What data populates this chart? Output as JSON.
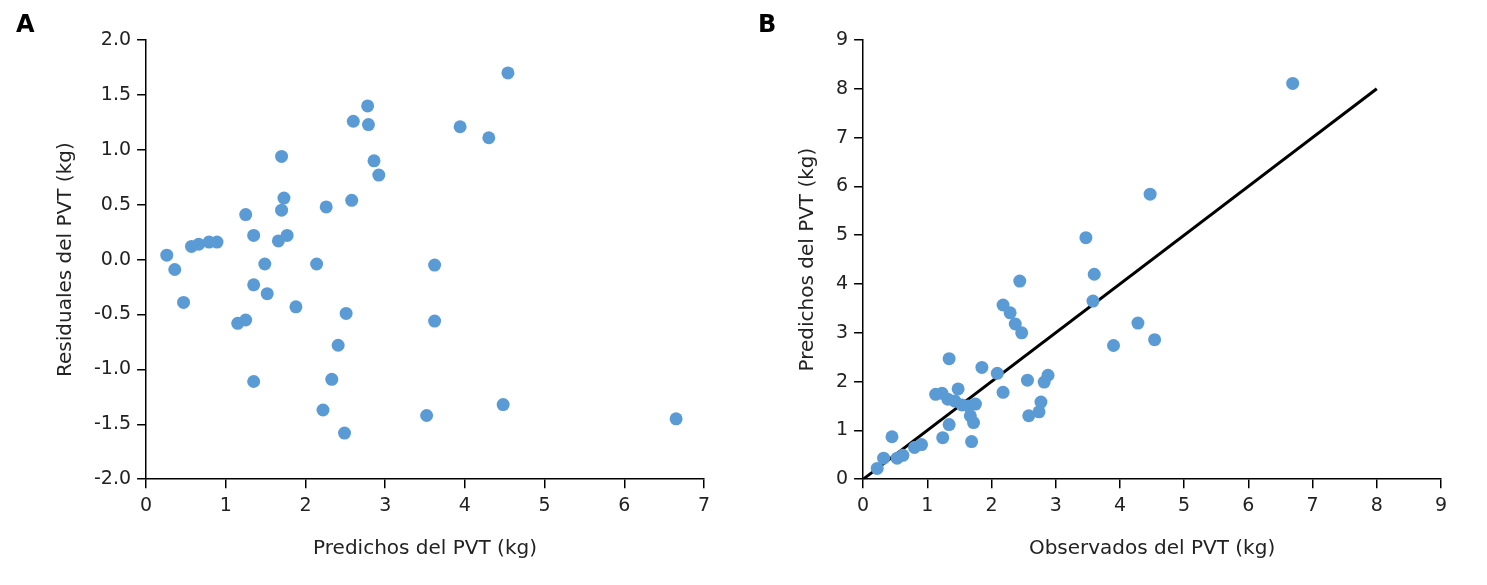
{
  "chart_data": [
    {
      "type": "scatter",
      "annotations": [
        "A"
      ],
      "xlabel": "Predichos del PVT (kg)",
      "ylabel": "Residuales del PVT (kg)",
      "grid": false,
      "legend": false,
      "marker": "circle",
      "xlim": [
        0,
        7
      ],
      "xticks": [
        0,
        1,
        2,
        3,
        4,
        5,
        6,
        7
      ],
      "ylim": [
        -2,
        2
      ],
      "yticks": [
        {
          "value": -2,
          "label": "-2.0"
        },
        {
          "value": -1.5,
          "label": "-1.5"
        },
        {
          "value": -1,
          "label": "-1.0"
        },
        {
          "value": -0.5,
          "label": "-0.5"
        },
        {
          "value": 0,
          "label": "0.0"
        },
        {
          "value": 0.5,
          "label": "0.5"
        },
        {
          "value": 1,
          "label": "1.0"
        },
        {
          "value": 1.5,
          "label": "1.5"
        },
        {
          "value": 2,
          "label": "2.0"
        }
      ],
      "series": [
        {
          "color": "#5b9bd5",
          "x": [
            0.26,
            0.36,
            0.47,
            0.57,
            0.66,
            0.79,
            0.89,
            1.15,
            1.25,
            1.25,
            1.35,
            1.35,
            1.35,
            1.49,
            1.52,
            1.66,
            1.7,
            1.7,
            1.73,
            1.77,
            1.88,
            2.14,
            2.22,
            2.26,
            2.33,
            2.41,
            2.49,
            2.51,
            2.58,
            2.6,
            2.78,
            2.79,
            2.86,
            2.92,
            3.52,
            3.62,
            3.62,
            3.94,
            4.3,
            4.48,
            4.54,
            6.65
          ],
          "values": [
            0.04,
            -0.09,
            -0.39,
            0.12,
            0.14,
            0.16,
            0.16,
            -0.58,
            -0.55,
            0.41,
            0.22,
            -0.23,
            -1.11,
            -0.04,
            -0.31,
            0.17,
            0.45,
            0.94,
            0.56,
            0.22,
            -0.43,
            -0.04,
            -1.37,
            0.48,
            -1.09,
            -0.78,
            -1.58,
            -0.49,
            0.54,
            1.26,
            1.4,
            1.23,
            0.9,
            0.77,
            -1.42,
            -0.05,
            -0.56,
            1.21,
            1.11,
            -1.32,
            1.7,
            -1.45
          ]
        }
      ]
    },
    {
      "type": "scatter",
      "annotations": [
        "B"
      ],
      "xlabel": "Observados del PVT (kg)",
      "ylabel": "Predichos del PVT (kg)",
      "grid": false,
      "legend": false,
      "marker": "circle",
      "xlim": [
        0,
        9
      ],
      "xticks": [
        0,
        1,
        2,
        3,
        4,
        5,
        6,
        7,
        8,
        9
      ],
      "ylim": [
        0,
        9
      ],
      "yticks": [
        0,
        1,
        2,
        3,
        4,
        5,
        6,
        7,
        8,
        9
      ],
      "series": [
        {
          "color": "#5b9bd5",
          "x": [
            0.22,
            0.32,
            0.45,
            0.53,
            0.62,
            0.8,
            0.91,
            1.13,
            1.23,
            1.24,
            1.32,
            1.34,
            1.34,
            1.43,
            1.54,
            1.48,
            1.64,
            1.67,
            1.72,
            1.75,
            1.69,
            1.85,
            2.09,
            2.18,
            2.18,
            2.29,
            2.37,
            2.47,
            2.44,
            2.56,
            2.58,
            2.74,
            2.77,
            2.82,
            2.88,
            3.47,
            3.6,
            3.58,
            3.9,
            4.28,
            4.47,
            4.54,
            6.69
          ],
          "values": [
            0.22,
            0.43,
            0.87,
            0.43,
            0.49,
            0.65,
            0.71,
            1.74,
            1.76,
            0.85,
            1.64,
            1.12,
            2.47,
            1.6,
            1.52,
            1.85,
            1.5,
            1.3,
            1.16,
            1.54,
            0.77,
            2.29,
            2.17,
            1.78,
            3.57,
            3.41,
            3.18,
            3.0,
            4.06,
            2.03,
            1.3,
            1.38,
            1.58,
            1.99,
            2.13,
            4.95,
            4.2,
            3.65,
            2.74,
            3.2,
            5.84,
            2.86,
            8.11
          ]
        },
        {
          "type": "line",
          "color": "#000000",
          "marker": "none",
          "line_style": "solid",
          "x": [
            0,
            8
          ],
          "values": [
            0,
            8
          ]
        }
      ]
    }
  ]
}
